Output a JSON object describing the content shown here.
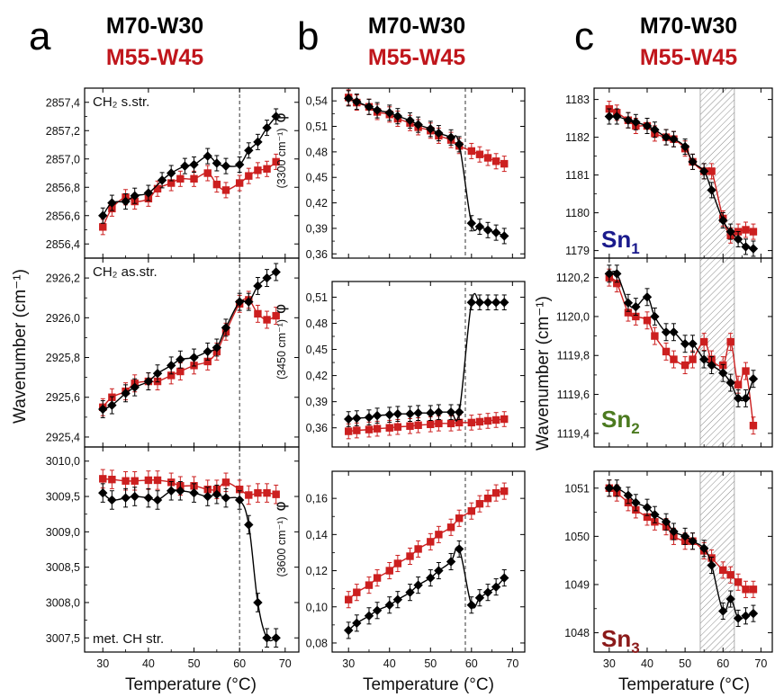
{
  "figure": {
    "columns": [
      {
        "letter": "a",
        "title_black": "M70-W30",
        "title_red": "M55-W45"
      },
      {
        "letter": "b",
        "title_black": "M70-W30",
        "title_red": "M55-W45"
      },
      {
        "letter": "c",
        "title_black": "M70-W30",
        "title_red": "M55-W45"
      }
    ],
    "colors": {
      "black_series": "#000000",
      "red_series": "#cc1f1f",
      "red_text": "#c0161c",
      "sn1": "#1a1a8c",
      "sn2": "#4b7a1f",
      "sn3": "#8b1a1a",
      "vline": "#333333",
      "hatch": "#8a8a8a"
    }
  },
  "chart_data": [
    {
      "type": "line",
      "column": "a",
      "panel": 0,
      "annotation": "CH₂ s.str.",
      "ylim": [
        2856.3,
        2857.5
      ],
      "yticks": [
        2856.4,
        2856.6,
        2856.8,
        2857.0,
        2857.2,
        2857.4
      ],
      "ytick_labels": [
        "2856,4",
        "2856,6",
        "2856,8",
        "2857,0",
        "2857,2",
        "2857,4"
      ],
      "xlim": [
        26,
        73
      ],
      "vline_x": 60,
      "series": [
        {
          "color": "black",
          "marker": "diamond",
          "x": [
            30,
            32,
            35,
            37,
            40,
            43,
            45,
            48,
            50,
            53,
            55,
            57,
            60,
            62,
            64,
            66,
            68
          ],
          "y": [
            2856.6,
            2856.69,
            2856.7,
            2856.74,
            2856.76,
            2856.85,
            2856.9,
            2856.95,
            2856.96,
            2857.02,
            2856.97,
            2856.95,
            2856.96,
            2857.06,
            2857.12,
            2857.22,
            2857.3
          ]
        },
        {
          "color": "red",
          "marker": "square",
          "x": [
            30,
            32,
            35,
            37,
            40,
            42,
            45,
            47,
            50,
            53,
            55,
            57,
            60,
            62,
            64,
            66,
            68
          ],
          "y": [
            2856.52,
            2856.65,
            2856.73,
            2856.7,
            2856.72,
            2856.79,
            2856.83,
            2856.86,
            2856.86,
            2856.9,
            2856.82,
            2856.78,
            2856.83,
            2856.88,
            2856.92,
            2856.93,
            2856.98
          ]
        }
      ],
      "xtick_labels": []
    },
    {
      "type": "line",
      "column": "a",
      "panel": 1,
      "annotation": "CH₂ as.str.",
      "ylim": [
        2925.35,
        2926.3
      ],
      "yticks": [
        2925.4,
        2925.6,
        2925.8,
        2926.0,
        2926.2
      ],
      "ytick_labels": [
        "2925,4",
        "2925,6",
        "2925,8",
        "2926,0",
        "2926,2"
      ],
      "xlim": [
        26,
        73
      ],
      "vline_x": 60,
      "series": [
        {
          "color": "black",
          "marker": "diamond",
          "x": [
            30,
            32,
            35,
            37,
            40,
            42,
            45,
            47,
            50,
            53,
            55,
            57,
            60,
            62,
            64,
            66,
            68
          ],
          "y": [
            2925.54,
            2925.56,
            2925.62,
            2925.65,
            2925.68,
            2925.72,
            2925.76,
            2925.79,
            2925.8,
            2925.83,
            2925.85,
            2925.95,
            2926.08,
            2926.08,
            2926.16,
            2926.2,
            2926.23
          ]
        },
        {
          "color": "red",
          "marker": "square",
          "x": [
            30,
            32,
            35,
            37,
            40,
            42,
            45,
            47,
            50,
            53,
            55,
            57,
            60,
            62,
            64,
            66,
            68
          ],
          "y": [
            2925.55,
            2925.6,
            2925.63,
            2925.67,
            2925.68,
            2925.68,
            2925.71,
            2925.73,
            2925.76,
            2925.78,
            2925.83,
            2925.93,
            2926.07,
            2926.09,
            2926.02,
            2925.99,
            2926.01
          ]
        }
      ],
      "xtick_labels": []
    },
    {
      "type": "line",
      "column": "a",
      "panel": 2,
      "annotation": "met. CH str.",
      "ylim": [
        3007.3,
        3010.2
      ],
      "yticks": [
        3007.5,
        3008.0,
        3008.5,
        3009.0,
        3009.5,
        3010.0
      ],
      "ytick_labels": [
        "3007,5",
        "3008,0",
        "3008,5",
        "3009,0",
        "3009,5",
        "3010,0"
      ],
      "xlim": [
        26,
        73
      ],
      "vline_x": 60,
      "series": [
        {
          "color": "black",
          "marker": "diamond",
          "x": [
            30,
            32,
            35,
            37,
            40,
            42,
            45,
            47,
            50,
            53,
            55,
            57,
            60,
            62,
            64,
            66,
            68
          ],
          "y": [
            3009.55,
            3009.45,
            3009.48,
            3009.5,
            3009.48,
            3009.45,
            3009.58,
            3009.58,
            3009.55,
            3009.5,
            3009.53,
            3009.48,
            3009.45,
            3009.1,
            3008.0,
            3007.5,
            3007.5
          ]
        },
        {
          "color": "red",
          "marker": "square",
          "x": [
            30,
            32,
            35,
            37,
            40,
            42,
            45,
            47,
            50,
            53,
            55,
            57,
            60,
            62,
            64,
            66,
            68
          ],
          "y": [
            3009.75,
            3009.74,
            3009.72,
            3009.72,
            3009.73,
            3009.73,
            3009.7,
            3009.65,
            3009.65,
            3009.6,
            3009.6,
            3009.7,
            3009.6,
            3009.52,
            3009.55,
            3009.55,
            3009.53
          ]
        }
      ],
      "xtick_labels": [
        "30",
        "40",
        "50",
        "60",
        "70"
      ]
    },
    {
      "type": "line",
      "column": "b",
      "panel": 0,
      "ylabel_unit": "(3300 cm⁻¹)",
      "ylim": [
        0.355,
        0.555
      ],
      "yticks": [
        0.36,
        0.39,
        0.42,
        0.45,
        0.48,
        0.51,
        0.54
      ],
      "ytick_labels": [
        "0,36",
        "0,39",
        "0,42",
        "0,45",
        "0,48",
        "0,51",
        "0,54"
      ],
      "xlim": [
        26,
        73
      ],
      "vline_x": 58.5,
      "series": [
        {
          "color": "black",
          "marker": "diamond",
          "x": [
            30,
            32,
            35,
            37,
            40,
            42,
            45,
            47,
            50,
            52,
            55,
            57,
            60,
            62,
            64,
            66,
            68
          ],
          "y": [
            0.543,
            0.539,
            0.533,
            0.529,
            0.526,
            0.522,
            0.517,
            0.512,
            0.507,
            0.502,
            0.497,
            0.489,
            0.396,
            0.392,
            0.388,
            0.385,
            0.381
          ]
        },
        {
          "color": "red",
          "marker": "square",
          "x": [
            30,
            32,
            35,
            37,
            40,
            42,
            45,
            47,
            50,
            52,
            55,
            57,
            60,
            62,
            64,
            66,
            68
          ],
          "y": [
            0.544,
            0.538,
            0.533,
            0.527,
            0.524,
            0.519,
            0.514,
            0.509,
            0.505,
            0.499,
            0.494,
            0.487,
            0.481,
            0.477,
            0.473,
            0.469,
            0.466
          ]
        }
      ],
      "xtick_labels": []
    },
    {
      "type": "line",
      "column": "b",
      "panel": 1,
      "ylabel_unit": "(3450 cm⁻¹)",
      "ylim": [
        0.338,
        0.528
      ],
      "yticks": [
        0.36,
        0.39,
        0.42,
        0.45,
        0.48,
        0.51
      ],
      "ytick_labels": [
        "0,36",
        "0,39",
        "0,42",
        "0,45",
        "0,48",
        "0,51"
      ],
      "xlim": [
        26,
        73
      ],
      "vline_x": 58.5,
      "series": [
        {
          "color": "black",
          "marker": "diamond",
          "x": [
            30,
            32,
            35,
            37,
            40,
            42,
            45,
            47,
            50,
            52,
            55,
            57,
            60,
            62,
            64,
            66,
            68
          ],
          "y": [
            0.37,
            0.371,
            0.372,
            0.374,
            0.375,
            0.376,
            0.376,
            0.377,
            0.377,
            0.378,
            0.378,
            0.378,
            0.504,
            0.504,
            0.504,
            0.504,
            0.504
          ]
        },
        {
          "color": "red",
          "marker": "square",
          "x": [
            30,
            32,
            35,
            37,
            40,
            42,
            45,
            47,
            50,
            52,
            55,
            57,
            60,
            62,
            64,
            66,
            68
          ],
          "y": [
            0.356,
            0.357,
            0.358,
            0.359,
            0.36,
            0.361,
            0.362,
            0.363,
            0.364,
            0.365,
            0.365,
            0.366,
            0.366,
            0.367,
            0.368,
            0.369,
            0.37
          ]
        }
      ],
      "xtick_labels": []
    },
    {
      "type": "line",
      "column": "b",
      "panel": 2,
      "ylabel_unit": "(3600 cm⁻¹)",
      "ylim": [
        0.075,
        0.175
      ],
      "yticks": [
        0.08,
        0.1,
        0.12,
        0.14,
        0.16
      ],
      "ytick_labels": [
        "0,08",
        "0,10",
        "0,12",
        "0,14",
        "0,16"
      ],
      "xlim": [
        26,
        73
      ],
      "vline_x": 58.5,
      "series": [
        {
          "color": "black",
          "marker": "diamond",
          "x": [
            30,
            32,
            35,
            37,
            40,
            42,
            45,
            47,
            50,
            52,
            55,
            57,
            60,
            62,
            64,
            66,
            68
          ],
          "y": [
            0.087,
            0.091,
            0.095,
            0.098,
            0.101,
            0.104,
            0.108,
            0.112,
            0.116,
            0.12,
            0.125,
            0.132,
            0.101,
            0.105,
            0.108,
            0.111,
            0.116
          ]
        },
        {
          "color": "red",
          "marker": "square",
          "x": [
            30,
            32,
            35,
            37,
            40,
            42,
            45,
            47,
            50,
            52,
            55,
            57,
            60,
            62,
            64,
            66,
            68
          ],
          "y": [
            0.104,
            0.108,
            0.112,
            0.116,
            0.12,
            0.124,
            0.128,
            0.132,
            0.136,
            0.14,
            0.144,
            0.149,
            0.153,
            0.157,
            0.16,
            0.163,
            0.164
          ]
        }
      ],
      "xtick_labels": [
        "30",
        "40",
        "50",
        "60",
        "70"
      ]
    },
    {
      "type": "line",
      "column": "c",
      "panel": 0,
      "annotation": "Sn",
      "annotation_sub": "1",
      "ylim": [
        1178.8,
        1183.3
      ],
      "yticks": [
        1179,
        1180,
        1181,
        1182,
        1183
      ],
      "ytick_labels": [
        "1179",
        "1180",
        "1181",
        "1182",
        "1183"
      ],
      "xlim": [
        26,
        73
      ],
      "shaded_x": [
        54,
        63
      ],
      "series": [
        {
          "color": "black",
          "marker": "diamond",
          "x": [
            30,
            32,
            35,
            37,
            40,
            42,
            45,
            47,
            50,
            52,
            55,
            57,
            60,
            62,
            64,
            66,
            68
          ],
          "y": [
            1182.55,
            1182.55,
            1182.45,
            1182.4,
            1182.3,
            1182.2,
            1182.0,
            1181.95,
            1181.75,
            1181.35,
            1181.1,
            1180.6,
            1179.8,
            1179.5,
            1179.3,
            1179.1,
            1179.05
          ]
        },
        {
          "color": "red",
          "marker": "square",
          "x": [
            30,
            32,
            35,
            37,
            40,
            42,
            45,
            47,
            50,
            52,
            55,
            57,
            60,
            62,
            64,
            66,
            68
          ],
          "y": [
            1182.75,
            1182.65,
            1182.45,
            1182.3,
            1182.3,
            1182.1,
            1182.0,
            1181.95,
            1181.7,
            1181.35,
            1181.1,
            1181.1,
            1179.85,
            1179.4,
            1179.5,
            1179.55,
            1179.5
          ]
        }
      ],
      "xtick_labels": []
    },
    {
      "type": "line",
      "column": "c",
      "panel": 1,
      "annotation": "Sn",
      "annotation_sub": "2",
      "ylim": [
        1119.33,
        1120.3
      ],
      "yticks": [
        1119.4,
        1119.6,
        1119.8,
        1120.0,
        1120.2
      ],
      "ytick_labels": [
        "1119,4",
        "1119,6",
        "1119,8",
        "1120,0",
        "1120,2"
      ],
      "xlim": [
        26,
        73
      ],
      "shaded_x": [
        54,
        63
      ],
      "series": [
        {
          "color": "black",
          "marker": "diamond",
          "x": [
            30,
            32,
            35,
            37,
            40,
            42,
            45,
            47,
            50,
            52,
            55,
            57,
            60,
            62,
            64,
            66,
            68
          ],
          "y": [
            1120.22,
            1120.22,
            1120.07,
            1120.05,
            1120.1,
            1120.0,
            1119.92,
            1119.92,
            1119.86,
            1119.86,
            1119.78,
            1119.75,
            1119.71,
            1119.66,
            1119.58,
            1119.58,
            1119.68
          ]
        },
        {
          "color": "red",
          "marker": "square",
          "x": [
            30,
            32,
            35,
            37,
            40,
            42,
            45,
            47,
            50,
            52,
            55,
            57,
            60,
            62,
            64,
            66,
            68
          ],
          "y": [
            1120.2,
            1120.17,
            1120.02,
            1120.0,
            1119.98,
            1119.9,
            1119.82,
            1119.78,
            1119.75,
            1119.78,
            1119.87,
            1119.78,
            1119.75,
            1119.87,
            1119.65,
            1119.72,
            1119.44
          ]
        }
      ],
      "xtick_labels": []
    },
    {
      "type": "line",
      "column": "c",
      "panel": 2,
      "annotation": "Sn",
      "annotation_sub": "3",
      "ylim": [
        1047.6,
        1051.35
      ],
      "yticks": [
        1048,
        1049,
        1050,
        1051
      ],
      "ytick_labels": [
        "1048",
        "1049",
        "1050",
        "1051"
      ],
      "xlim": [
        26,
        73
      ],
      "shaded_x": [
        54,
        63
      ],
      "series": [
        {
          "color": "black",
          "marker": "diamond",
          "x": [
            30,
            32,
            35,
            37,
            40,
            42,
            45,
            47,
            50,
            52,
            55,
            57,
            60,
            62,
            64,
            66,
            68
          ],
          "y": [
            1051.0,
            1051.0,
            1050.85,
            1050.7,
            1050.6,
            1050.45,
            1050.3,
            1050.1,
            1050.0,
            1049.9,
            1049.75,
            1049.4,
            1048.45,
            1048.7,
            1048.3,
            1048.35,
            1048.4
          ]
        },
        {
          "color": "red",
          "marker": "square",
          "x": [
            30,
            32,
            35,
            37,
            40,
            42,
            45,
            47,
            50,
            52,
            55,
            57,
            60,
            62,
            64,
            66,
            68
          ],
          "y": [
            1051.0,
            1050.9,
            1050.7,
            1050.55,
            1050.4,
            1050.3,
            1050.2,
            1050.0,
            1049.9,
            1049.9,
            1049.7,
            1049.55,
            1049.3,
            1049.2,
            1049.05,
            1048.9,
            1048.9
          ]
        }
      ],
      "xtick_labels": [
        "30",
        "40",
        "50",
        "60",
        "70"
      ]
    }
  ],
  "axes": {
    "xlabel": "Temperature (°C)",
    "a_ylabel": "Wavenumber (cm⁻¹)",
    "b_ylabel_symbol": "φ",
    "c_ylabel": "Wavenumber (cm⁻¹)"
  }
}
